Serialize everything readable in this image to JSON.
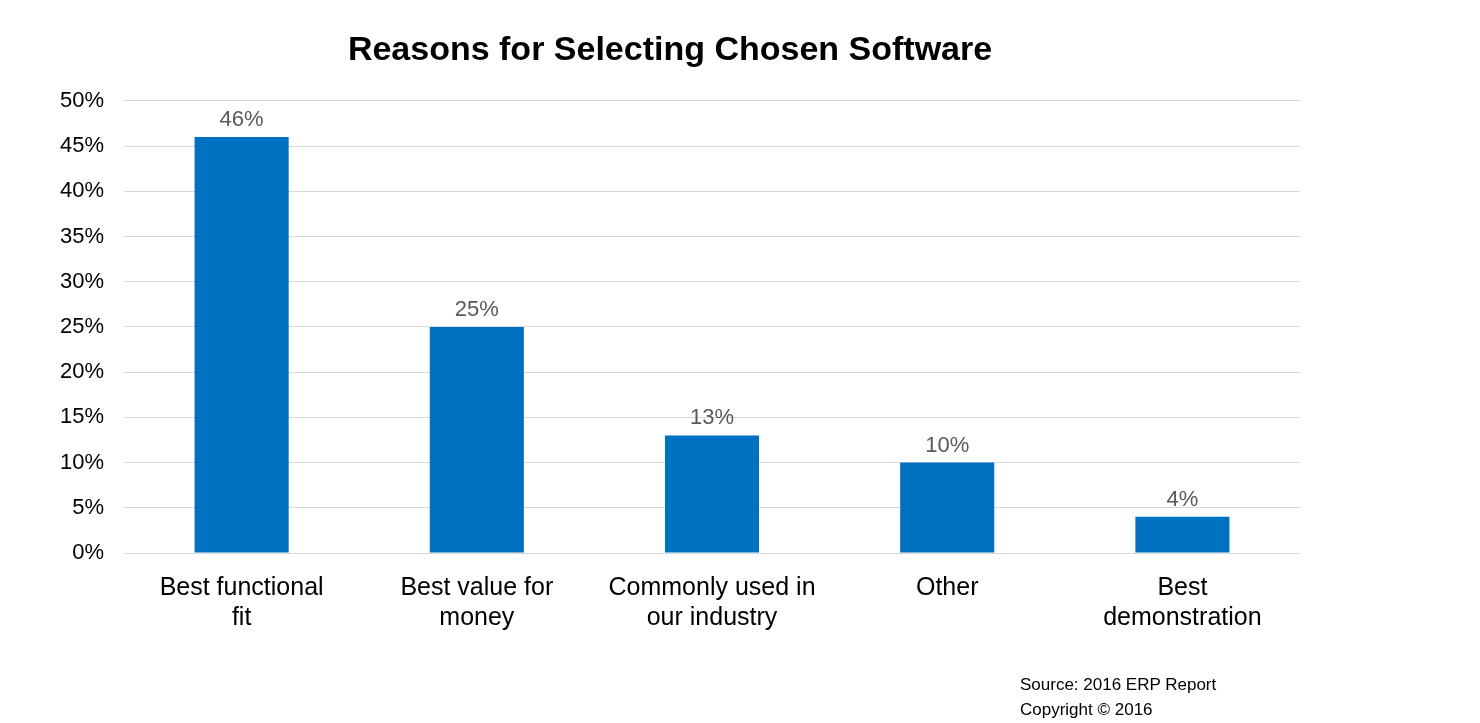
{
  "chart_data": {
    "type": "bar",
    "title": "Reasons for Selecting Chosen Software",
    "categories": [
      "Best functional fit",
      "Best value for money",
      "Commonly used in our industry",
      "Other",
      "Best demonstration"
    ],
    "values": [
      46,
      25,
      13,
      10,
      4
    ],
    "color": "#0070c0",
    "value_labels": [
      "46%",
      "25%",
      "13%",
      "10%",
      "4%"
    ],
    "ylim": [
      0,
      50
    ],
    "yticks": [
      {
        "value": 0,
        "label": "0%"
      },
      {
        "value": 5,
        "label": "5%"
      },
      {
        "value": 10,
        "label": "10%"
      },
      {
        "value": 15,
        "label": "15%"
      },
      {
        "value": 20,
        "label": "20%"
      },
      {
        "value": 25,
        "label": "25%"
      },
      {
        "value": 30,
        "label": "30%"
      },
      {
        "value": 35,
        "label": "35%"
      },
      {
        "value": 40,
        "label": "40%"
      },
      {
        "value": 45,
        "label": "45%"
      },
      {
        "value": 50,
        "label": "50%"
      }
    ],
    "grid": "y",
    "legend": false,
    "annotations": [
      "Source: 2016 ERP Report",
      "Copyright © 2016"
    ]
  }
}
